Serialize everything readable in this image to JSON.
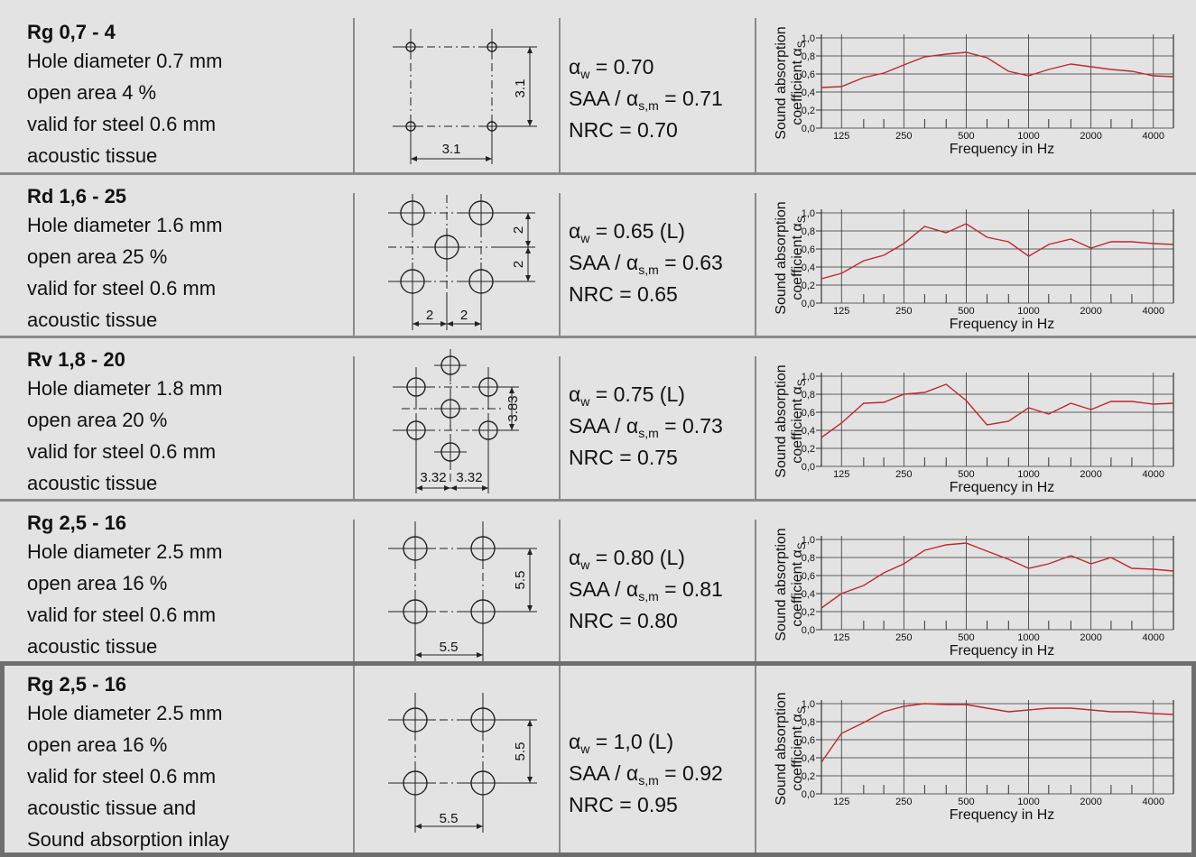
{
  "labels": {
    "alpha_w_prefix": "α",
    "alpha_w_sub": "w",
    "saa_prefix": "SAA / α",
    "saa_sub": "s,m",
    "nrc_prefix": "NRC = "
  },
  "rows": [
    {
      "title": "Rg 0,7 - 4",
      "lines": [
        "Hole diameter 0.7 mm",
        "open area 4 %",
        "valid for steel 0.6 mm",
        "acoustic tissue"
      ],
      "alpha_w": " = 0.70",
      "saa": " = 0.71",
      "nrc": "0.70",
      "pattern": {
        "type": "square",
        "hole_size": "small",
        "dims": [
          "3.1",
          "3.1"
        ]
      }
    },
    {
      "title": "Rd 1,6 - 25",
      "lines": [
        "Hole diameter 1.6 mm",
        "open area 25 %",
        "valid for steel 0.6 mm",
        "acoustic tissue"
      ],
      "alpha_w": " = 0.65 (L)",
      "saa": " = 0.63",
      "nrc": "0.65",
      "pattern": {
        "type": "diagonal",
        "hole_size": "large",
        "dims": [
          "2",
          "2",
          "2",
          "2"
        ]
      }
    },
    {
      "title": "Rv 1,8 - 20",
      "lines": [
        "Hole diameter 1.8 mm",
        "open area 20 %",
        "valid for steel 0.6 mm",
        "acoustic tissue"
      ],
      "alpha_w": " = 0.75 (L)",
      "saa": " = 0.73",
      "nrc": "0.75",
      "pattern": {
        "type": "offset",
        "hole_size": "medium",
        "dims": [
          "3.83",
          "3.32",
          "3.32"
        ]
      }
    },
    {
      "title": "Rg 2,5 - 16",
      "lines": [
        "Hole diameter 2.5 mm",
        "open area 16 %",
        "valid for steel 0.6 mm",
        "acoustic tissue"
      ],
      "alpha_w": " = 0.80 (L)",
      "saa": " = 0.81",
      "nrc": "0.80",
      "pattern": {
        "type": "square",
        "hole_size": "large",
        "dims": [
          "5.5",
          "5.5"
        ]
      }
    },
    {
      "title": "Rg 2,5 - 16",
      "lines": [
        "Hole diameter 2.5 mm",
        "open area 16 %",
        "valid for steel 0.6 mm",
        "acoustic tissue and",
        "Sound absorption inlay"
      ],
      "alpha_w": " = 1,0 (L)",
      "saa": " = 0.92",
      "nrc": "0.95",
      "pattern": {
        "type": "square",
        "hole_size": "large",
        "dims": [
          "5.5",
          "5.5"
        ]
      }
    }
  ],
  "chart_common": {
    "ylabel_line1": "Sound absorption",
    "ylabel_line2": "coefficient α",
    "ylabel_sub": "S",
    "xlabel": "Frequency in Hz",
    "line_color": "#c0282d"
  },
  "chart_data": [
    {
      "type": "line",
      "x": [
        100,
        125,
        160,
        200,
        250,
        315,
        400,
        500,
        630,
        800,
        1000,
        1250,
        1600,
        2000,
        2500,
        3150,
        4000,
        5000
      ],
      "y": [
        0.45,
        0.46,
        0.56,
        0.61,
        0.7,
        0.79,
        0.82,
        0.84,
        0.78,
        0.63,
        0.58,
        0.65,
        0.71,
        0.68,
        0.65,
        0.63,
        0.58,
        0.57
      ],
      "x_tick_labels": [
        "125",
        "250",
        "500",
        "1000",
        "2000",
        "4000"
      ],
      "y_tick_labels": [
        "0,0",
        "0,2",
        "0,4",
        "0,6",
        "0,8",
        "1,0"
      ],
      "xscale": "log",
      "ylim": [
        0,
        1
      ],
      "grid": true,
      "xlabel": "Frequency in Hz",
      "ylabel": "Sound absorption coefficient αS"
    },
    {
      "type": "line",
      "x": [
        100,
        125,
        160,
        200,
        250,
        315,
        400,
        500,
        630,
        800,
        1000,
        1250,
        1600,
        2000,
        2500,
        3150,
        4000,
        5000
      ],
      "y": [
        0.27,
        0.33,
        0.47,
        0.53,
        0.66,
        0.85,
        0.78,
        0.88,
        0.73,
        0.68,
        0.52,
        0.65,
        0.71,
        0.61,
        0.68,
        0.68,
        0.66,
        0.65
      ],
      "x_tick_labels": [
        "125",
        "250",
        "500",
        "1000",
        "2000",
        "4000"
      ],
      "y_tick_labels": [
        "0,0",
        "0,2",
        "0,4",
        "0,6",
        "0,8",
        "1,0"
      ],
      "xscale": "log",
      "ylim": [
        0,
        1
      ],
      "grid": true,
      "xlabel": "Frequency in Hz",
      "ylabel": "Sound absorption coefficient αS"
    },
    {
      "type": "line",
      "x": [
        100,
        125,
        160,
        200,
        250,
        315,
        400,
        500,
        630,
        800,
        1000,
        1250,
        1600,
        2000,
        2500,
        3150,
        4000,
        5000
      ],
      "y": [
        0.32,
        0.48,
        0.7,
        0.71,
        0.8,
        0.82,
        0.91,
        0.73,
        0.46,
        0.5,
        0.65,
        0.58,
        0.7,
        0.63,
        0.72,
        0.72,
        0.69,
        0.7
      ],
      "x_tick_labels": [
        "125",
        "250",
        "500",
        "1000",
        "2000",
        "4000"
      ],
      "y_tick_labels": [
        "0,0",
        "0,2",
        "0,4",
        "0,6",
        "0,8",
        "1,0"
      ],
      "xscale": "log",
      "ylim": [
        0,
        1
      ],
      "grid": true,
      "xlabel": "Frequency in Hz",
      "ylabel": "Sound absorption coefficient αS"
    },
    {
      "type": "line",
      "x": [
        100,
        125,
        160,
        200,
        250,
        315,
        400,
        500,
        630,
        800,
        1000,
        1250,
        1600,
        2000,
        2500,
        3150,
        4000,
        5000
      ],
      "y": [
        0.24,
        0.4,
        0.49,
        0.63,
        0.73,
        0.88,
        0.94,
        0.96,
        0.87,
        0.78,
        0.68,
        0.73,
        0.82,
        0.73,
        0.8,
        0.68,
        0.67,
        0.65
      ],
      "x_tick_labels": [
        "125",
        "250",
        "500",
        "1000",
        "2000",
        "4000"
      ],
      "y_tick_labels": [
        "0,0",
        "0,2",
        "0,4",
        "0,6",
        "0,8",
        "1,0"
      ],
      "xscale": "log",
      "ylim": [
        0,
        1
      ],
      "grid": true,
      "xlabel": "Frequency in Hz",
      "ylabel": "Sound absorption coefficient αS"
    },
    {
      "type": "line",
      "x": [
        100,
        125,
        160,
        200,
        250,
        315,
        400,
        500,
        630,
        800,
        1000,
        1250,
        1600,
        2000,
        2500,
        3150,
        4000,
        5000
      ],
      "y": [
        0.35,
        0.67,
        0.79,
        0.91,
        0.97,
        1.0,
        0.99,
        0.99,
        0.95,
        0.91,
        0.93,
        0.95,
        0.95,
        0.93,
        0.91,
        0.91,
        0.89,
        0.88
      ],
      "x_tick_labels": [
        "125",
        "250",
        "500",
        "1000",
        "2000",
        "4000"
      ],
      "y_tick_labels": [
        "0,0",
        "0,2",
        "0,4",
        "0,6",
        "0,8",
        "1,0"
      ],
      "xscale": "log",
      "ylim": [
        0,
        1
      ],
      "grid": true,
      "xlabel": "Frequency in Hz",
      "ylabel": "Sound absorption coefficient αS"
    }
  ]
}
